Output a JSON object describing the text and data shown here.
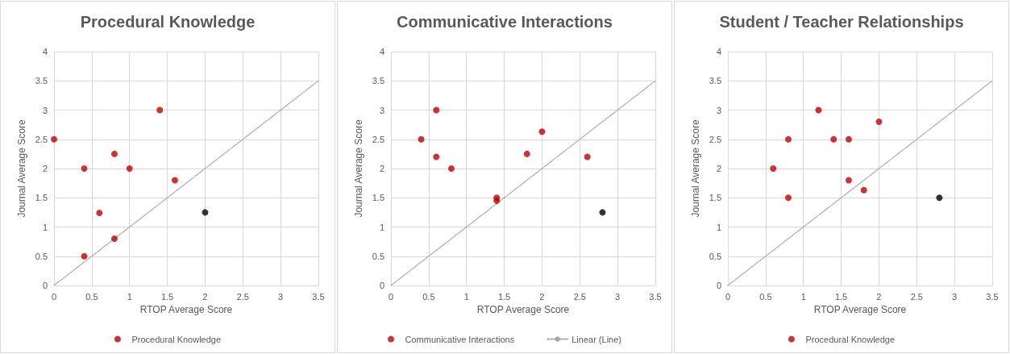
{
  "chart_data": [
    {
      "type": "scatter",
      "title": "Procedural Knowledge",
      "xlabel": "RTOP Average Score",
      "ylabel": "Journal Average Score",
      "xlim": [
        0,
        3.5
      ],
      "ylim": [
        0,
        4
      ],
      "xticks": [
        0,
        0.5,
        1,
        1.5,
        2,
        2.5,
        3,
        3.5
      ],
      "yticks": [
        0,
        0.5,
        1,
        1.5,
        2,
        2.5,
        3,
        3.5,
        4
      ],
      "grid": true,
      "legend": "bottom",
      "series": [
        {
          "name": "Procedural Knowledge",
          "color": "#c00000",
          "marker": "circle",
          "x": [
            0,
            0.4,
            0.4,
            0.6,
            0.8,
            0.8,
            1,
            1.4,
            1.6
          ],
          "values": [
            2.5,
            2,
            0.5,
            1.24,
            2.25,
            0.8,
            2,
            3,
            1.8
          ]
        },
        {
          "color": "#000000",
          "marker": "circle",
          "x": [
            2
          ],
          "values": [
            1.25
          ]
        },
        {
          "type": "line",
          "color": "#a6a6a6",
          "marker": "none",
          "line_style": "dotted",
          "x": [
            0,
            3.5
          ],
          "values": [
            0,
            3.5
          ]
        }
      ]
    },
    {
      "type": "scatter",
      "title": "Communicative Interactions",
      "xlabel": "RTOP Average Score",
      "ylabel": "Journal Average Score",
      "xlim": [
        0,
        3.5
      ],
      "ylim": [
        0,
        4
      ],
      "xticks": [
        0,
        0.5,
        1,
        1.5,
        2,
        2.5,
        3,
        3.5
      ],
      "yticks": [
        0,
        0.5,
        1,
        1.5,
        2,
        2.5,
        3,
        3.5,
        4
      ],
      "grid": true,
      "legend": "bottom",
      "series": [
        {
          "name": "Communicative Interactions",
          "color": "#c00000",
          "marker": "circle",
          "x": [
            0.4,
            0.6,
            0.6,
            0.8,
            1.4,
            1.4,
            1.8,
            2,
            2.6
          ],
          "values": [
            2.5,
            3,
            2.2,
            2,
            1.5,
            1.45,
            2.25,
            2.63,
            2.2
          ]
        },
        {
          "color": "#000000",
          "marker": "circle",
          "x": [
            2.8
          ],
          "values": [
            1.25
          ]
        },
        {
          "name": "Linear (Line)",
          "type": "line",
          "color": "#a6a6a6",
          "marker": "none",
          "line_style": "dotted",
          "x": [
            0,
            3.5
          ],
          "values": [
            0,
            3.5
          ]
        }
      ]
    },
    {
      "type": "scatter",
      "title": "Student / Teacher Relationships",
      "xlabel": "RTOP Average Score",
      "ylabel": "Journal Average Score",
      "xlim": [
        0,
        3.5
      ],
      "ylim": [
        0,
        4
      ],
      "xticks": [
        0,
        0.5,
        1,
        1.5,
        2,
        2.5,
        3,
        3.5
      ],
      "yticks": [
        0,
        0.5,
        1,
        1.5,
        2,
        2.5,
        3,
        3.5,
        4
      ],
      "grid": true,
      "legend": "bottom",
      "series": [
        {
          "name": "Procedural Knowledge",
          "color": "#c00000",
          "marker": "circle",
          "x": [
            0.6,
            0.8,
            0.8,
            1.2,
            1.4,
            1.6,
            1.6,
            1.8,
            2
          ],
          "values": [
            2,
            2.5,
            1.5,
            3,
            2.5,
            2.5,
            1.8,
            1.63,
            2.8
          ]
        },
        {
          "color": "#000000",
          "marker": "circle",
          "x": [
            2.8
          ],
          "values": [
            1.5
          ]
        },
        {
          "type": "line",
          "color": "#a6a6a6",
          "marker": "none",
          "line_style": "dotted",
          "x": [
            0,
            3.5
          ],
          "values": [
            0,
            3.5
          ]
        }
      ]
    }
  ]
}
